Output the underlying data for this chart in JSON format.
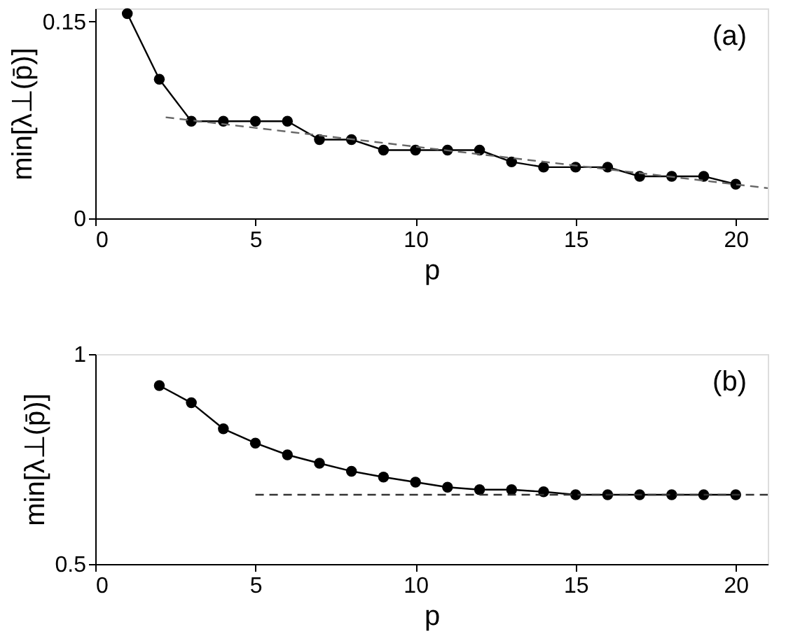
{
  "chart_data": [
    {
      "type": "line",
      "xlabel": "p",
      "ylabel": "min[λ⊥(p̄)]",
      "annotations": [
        "(a)"
      ],
      "xlim": [
        0,
        21
      ],
      "xticks": [
        0,
        5,
        10,
        15,
        20
      ],
      "ylim": [
        0,
        0.16
      ],
      "yticks": [
        0,
        0.15
      ],
      "grid": false,
      "series": [
        {
          "color": "#000000",
          "marker": "circle",
          "line_style": "solid",
          "x": [
            1,
            2,
            3,
            4,
            5,
            6,
            7,
            8,
            9,
            10,
            11,
            12,
            13,
            14,
            15,
            16,
            17,
            18,
            19,
            20
          ],
          "values": [
            0.156,
            0.106,
            0.074,
            0.074,
            0.074,
            0.074,
            0.06,
            0.06,
            0.052,
            0.052,
            0.052,
            0.052,
            0.043,
            0.039,
            0.039,
            0.039,
            0.032,
            0.032,
            0.032,
            0.026
          ]
        },
        {
          "color": "#666666",
          "marker": "none",
          "line_style": "dashed",
          "x": [
            2.2,
            21
          ],
          "values": [
            0.077,
            0.023
          ]
        }
      ]
    },
    {
      "type": "line",
      "xlabel": "p",
      "ylabel": "min[λ⊥(p̄)]",
      "annotations": [
        "(b)"
      ],
      "xlim": [
        0,
        21
      ],
      "xticks": [
        0,
        5,
        10,
        15,
        20
      ],
      "ylim": [
        0.5,
        1
      ],
      "yticks": [
        0.5,
        1
      ],
      "grid": false,
      "series": [
        {
          "color": "#000000",
          "marker": "circle",
          "line_style": "solid",
          "x": [
            2,
            3,
            4,
            5,
            6,
            7,
            8,
            9,
            10,
            11,
            12,
            13,
            14,
            15,
            16,
            17,
            18,
            19,
            20
          ],
          "values": [
            0.925,
            0.884,
            0.822,
            0.788,
            0.76,
            0.74,
            0.721,
            0.707,
            0.695,
            0.683,
            0.677,
            0.677,
            0.672,
            0.665,
            0.665,
            0.665,
            0.665,
            0.665,
            0.665
          ]
        },
        {
          "color": "#333333",
          "marker": "none",
          "line_style": "dashed",
          "x": [
            5,
            21
          ],
          "values": [
            0.665,
            0.665
          ]
        }
      ]
    }
  ]
}
